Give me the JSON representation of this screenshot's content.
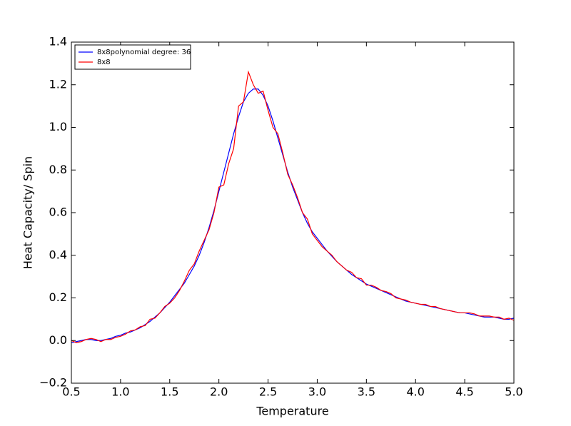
{
  "chart_data": {
    "type": "line",
    "xlabel": "Temperature",
    "ylabel": "Heat Capacity/ Spin",
    "x": [
      0.5,
      0.55,
      0.6,
      0.65,
      0.7,
      0.75,
      0.8,
      0.85,
      0.9,
      0.95,
      1.0,
      1.05,
      1.1,
      1.15,
      1.2,
      1.25,
      1.3,
      1.35,
      1.4,
      1.45,
      1.5,
      1.55,
      1.6,
      1.65,
      1.7,
      1.75,
      1.8,
      1.85,
      1.9,
      1.95,
      2.0,
      2.05,
      2.1,
      2.15,
      2.2,
      2.25,
      2.3,
      2.35,
      2.4,
      2.45,
      2.5,
      2.55,
      2.6,
      2.65,
      2.7,
      2.75,
      2.8,
      2.85,
      2.9,
      2.95,
      3.0,
      3.05,
      3.1,
      3.15,
      3.2,
      3.25,
      3.3,
      3.35,
      3.4,
      3.45,
      3.5,
      3.55,
      3.6,
      3.65,
      3.7,
      3.75,
      3.8,
      3.85,
      3.9,
      3.95,
      4.0,
      4.05,
      4.1,
      4.15,
      4.2,
      4.25,
      4.3,
      4.35,
      4.4,
      4.45,
      4.5,
      4.55,
      4.6,
      4.65,
      4.7,
      4.75,
      4.8,
      4.85,
      4.9,
      4.95,
      5.0
    ],
    "series": [
      {
        "name": "8x8polynomial degree: 36",
        "color": "#0000ff",
        "values": [
          -0.01,
          -0.005,
          0.0,
          0.005,
          0.005,
          0.0,
          0.0,
          0.005,
          0.01,
          0.02,
          0.025,
          0.035,
          0.04,
          0.05,
          0.06,
          0.075,
          0.09,
          0.11,
          0.13,
          0.155,
          0.18,
          0.21,
          0.24,
          0.27,
          0.31,
          0.35,
          0.4,
          0.46,
          0.53,
          0.61,
          0.7,
          0.79,
          0.88,
          0.97,
          1.05,
          1.12,
          1.16,
          1.18,
          1.18,
          1.15,
          1.1,
          1.03,
          0.95,
          0.87,
          0.79,
          0.72,
          0.66,
          0.6,
          0.55,
          0.51,
          0.48,
          0.45,
          0.42,
          0.395,
          0.37,
          0.35,
          0.33,
          0.31,
          0.295,
          0.28,
          0.265,
          0.255,
          0.245,
          0.235,
          0.225,
          0.215,
          0.205,
          0.195,
          0.185,
          0.18,
          0.175,
          0.17,
          0.165,
          0.16,
          0.155,
          0.15,
          0.145,
          0.14,
          0.135,
          0.13,
          0.13,
          0.125,
          0.12,
          0.115,
          0.11,
          0.11,
          0.11,
          0.105,
          0.1,
          0.1,
          0.105
        ]
      },
      {
        "name": "8x8",
        "color": "#ff0000",
        "values": [
          0.0,
          -0.01,
          -0.005,
          0.005,
          0.01,
          0.005,
          -0.005,
          0.005,
          0.005,
          0.015,
          0.02,
          0.03,
          0.045,
          0.05,
          0.065,
          0.07,
          0.1,
          0.105,
          0.13,
          0.16,
          0.175,
          0.2,
          0.235,
          0.28,
          0.33,
          0.36,
          0.42,
          0.47,
          0.52,
          0.6,
          0.72,
          0.73,
          0.83,
          0.9,
          1.1,
          1.12,
          1.26,
          1.2,
          1.16,
          1.17,
          1.08,
          1.0,
          0.97,
          0.88,
          0.78,
          0.73,
          0.67,
          0.6,
          0.57,
          0.5,
          0.47,
          0.44,
          0.42,
          0.4,
          0.37,
          0.35,
          0.33,
          0.32,
          0.295,
          0.29,
          0.26,
          0.26,
          0.25,
          0.235,
          0.23,
          0.22,
          0.2,
          0.195,
          0.19,
          0.18,
          0.175,
          0.17,
          0.17,
          0.16,
          0.16,
          0.15,
          0.145,
          0.14,
          0.135,
          0.13,
          0.13,
          0.13,
          0.125,
          0.115,
          0.115,
          0.115,
          0.11,
          0.11,
          0.1,
          0.105,
          0.095
        ]
      }
    ],
    "xlim": [
      0.5,
      5.0
    ],
    "ylim": [
      -0.2,
      1.4
    ],
    "xticks": [
      0.5,
      {
        "value": 1.0,
        "label": "1.0"
      },
      1.5,
      {
        "value": 2.0,
        "label": "2.0"
      },
      2.5,
      {
        "value": 3.0,
        "label": "3.0"
      },
      3.5,
      {
        "value": 4.0,
        "label": "4.0"
      },
      4.5,
      {
        "value": 5.0,
        "label": "5.0"
      }
    ],
    "yticks": [
      {
        "value": -0.2,
        "label": "−0.2"
      },
      {
        "value": 0.0,
        "label": "0.0"
      },
      0.2,
      0.4,
      0.6,
      0.8,
      {
        "value": 1.0,
        "label": "1.0"
      },
      1.2,
      1.4
    ],
    "grid": false,
    "legend_position": "upper-left"
  }
}
